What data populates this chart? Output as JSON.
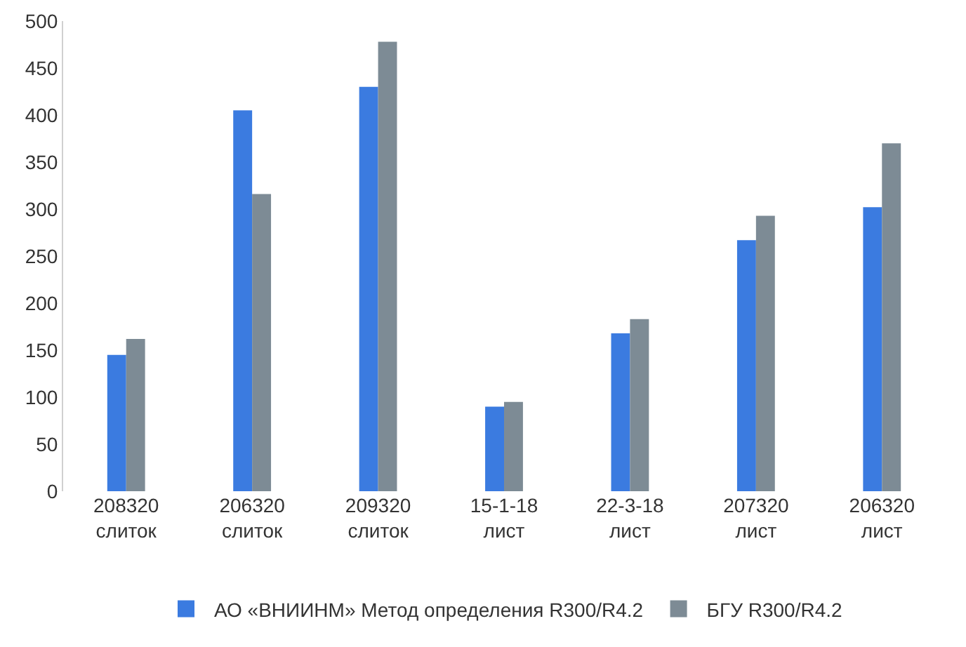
{
  "chart_data": {
    "type": "bar",
    "categories": [
      "208320\nслиток",
      "206320\nслиток",
      "209320\nслиток",
      "15-1-18\nлист",
      "22-3-18\nлист",
      "207320\nлист",
      "206320\nлист"
    ],
    "series": [
      {
        "name": "АО «ВНИИНМ» Метод определения R300/R4.2",
        "color": "#3b7be0",
        "values": [
          145,
          405,
          430,
          90,
          168,
          267,
          302
        ]
      },
      {
        "name": "БГУ R300/R4.2",
        "color": "#7d8b95",
        "values": [
          162,
          316,
          478,
          95,
          183,
          293,
          370
        ]
      }
    ],
    "ylim": [
      0,
      500
    ],
    "yticks": [
      0,
      50,
      100,
      150,
      200,
      250,
      300,
      350,
      400,
      450,
      500
    ],
    "grid": false,
    "legend": "bottom"
  }
}
